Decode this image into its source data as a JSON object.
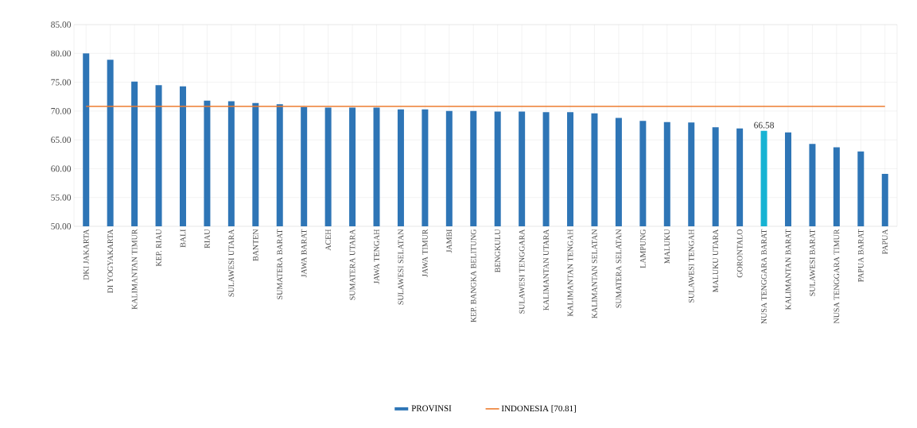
{
  "chart_data": {
    "type": "bar",
    "categories": [
      "DKI JAKARTA",
      "DI YOGYAKARTA",
      "KALIMANTAN TIMUR",
      "KEP. RIAU",
      "BALI",
      "RIAU",
      "SULAWESI UTARA",
      "BANTEN",
      "SUMATERA BARAT",
      "JAWA BARAT",
      "ACEH",
      "SUMATERA UTARA",
      "JAWA TENGAH",
      "SULAWESI SELATAN",
      "JAWA TIMUR",
      "JAMBI",
      "KEP. BANGKA BELITUNG",
      "BENGKULU",
      "SULAWESI TENGGARA",
      "KALIMANTAN UTARA",
      "KALIMANTAN TENGAH",
      "KALIMANTAN SELATAN",
      "SUMATERA SELATAN",
      "LAMPUNG",
      "MALUKU",
      "SULAWESI TENGAH",
      "MALUKU UTARA",
      "GORONTALO",
      "NUSA TENGGARA BARAT",
      "KALIMANTAN BARAT",
      "SULAWESI BARAT",
      "NUSA TENGGARA TIMUR",
      "PAPUA BARAT",
      "PAPUA"
    ],
    "series": [
      {
        "name": "PROVINSI",
        "color": "#2e75b6",
        "colors": [
          "#2e75b6",
          "#2e75b6",
          "#2e75b6",
          "#2e75b6",
          "#2e75b6",
          "#2e75b6",
          "#2e75b6",
          "#2e75b6",
          "#2e75b6",
          "#2e75b6",
          "#2e75b6",
          "#2e75b6",
          "#2e75b6",
          "#2e75b6",
          "#2e75b6",
          "#2e75b6",
          "#2e75b6",
          "#2e75b6",
          "#2e75b6",
          "#2e75b6",
          "#2e75b6",
          "#2e75b6",
          "#2e75b6",
          "#2e75b6",
          "#2e75b6",
          "#2e75b6",
          "#2e75b6",
          "#2e75b6",
          "#17b3d3",
          "#2e75b6",
          "#2e75b6",
          "#2e75b6",
          "#2e75b6",
          "#2e75b6"
        ],
        "values": [
          80.0,
          78.9,
          75.1,
          74.5,
          74.3,
          71.8,
          71.7,
          71.4,
          71.2,
          70.7,
          70.6,
          70.6,
          70.6,
          70.3,
          70.3,
          70.0,
          70.0,
          69.9,
          69.9,
          69.8,
          69.8,
          69.6,
          68.8,
          68.3,
          68.1,
          68.0,
          67.2,
          67.0,
          66.58,
          66.3,
          64.3,
          63.7,
          63.0,
          59.1
        ],
        "value_labels": [
          null,
          null,
          null,
          null,
          null,
          null,
          null,
          null,
          null,
          null,
          null,
          null,
          null,
          null,
          null,
          null,
          null,
          null,
          null,
          null,
          null,
          null,
          null,
          null,
          null,
          null,
          null,
          null,
          "66.58",
          null,
          null,
          null,
          null,
          null
        ]
      },
      {
        "name": "INDONESIA [70.81]",
        "type": "line",
        "color": "#ed7d31",
        "values": [
          70.81,
          70.81,
          70.81,
          70.81,
          70.81,
          70.81,
          70.81,
          70.81,
          70.81,
          70.81,
          70.81,
          70.81,
          70.81,
          70.81,
          70.81,
          70.81,
          70.81,
          70.81,
          70.81,
          70.81,
          70.81,
          70.81,
          70.81,
          70.81,
          70.81,
          70.81,
          70.81,
          70.81,
          70.81,
          70.81,
          70.81,
          70.81,
          70.81,
          70.81
        ]
      }
    ],
    "ylim": [
      50,
      85
    ],
    "yticks": [
      {
        "value": 50,
        "label": "50.00"
      },
      {
        "value": 55,
        "label": "55.00"
      },
      {
        "value": 60,
        "label": "60.00"
      },
      {
        "value": 65,
        "label": "65.00"
      },
      {
        "value": 70,
        "label": "70.00"
      },
      {
        "value": 75,
        "label": "75.00"
      },
      {
        "value": 80,
        "label": "80.00"
      },
      {
        "value": 85,
        "label": "85.00"
      }
    ],
    "grid": true,
    "legend": "bottom",
    "marker": "none"
  }
}
